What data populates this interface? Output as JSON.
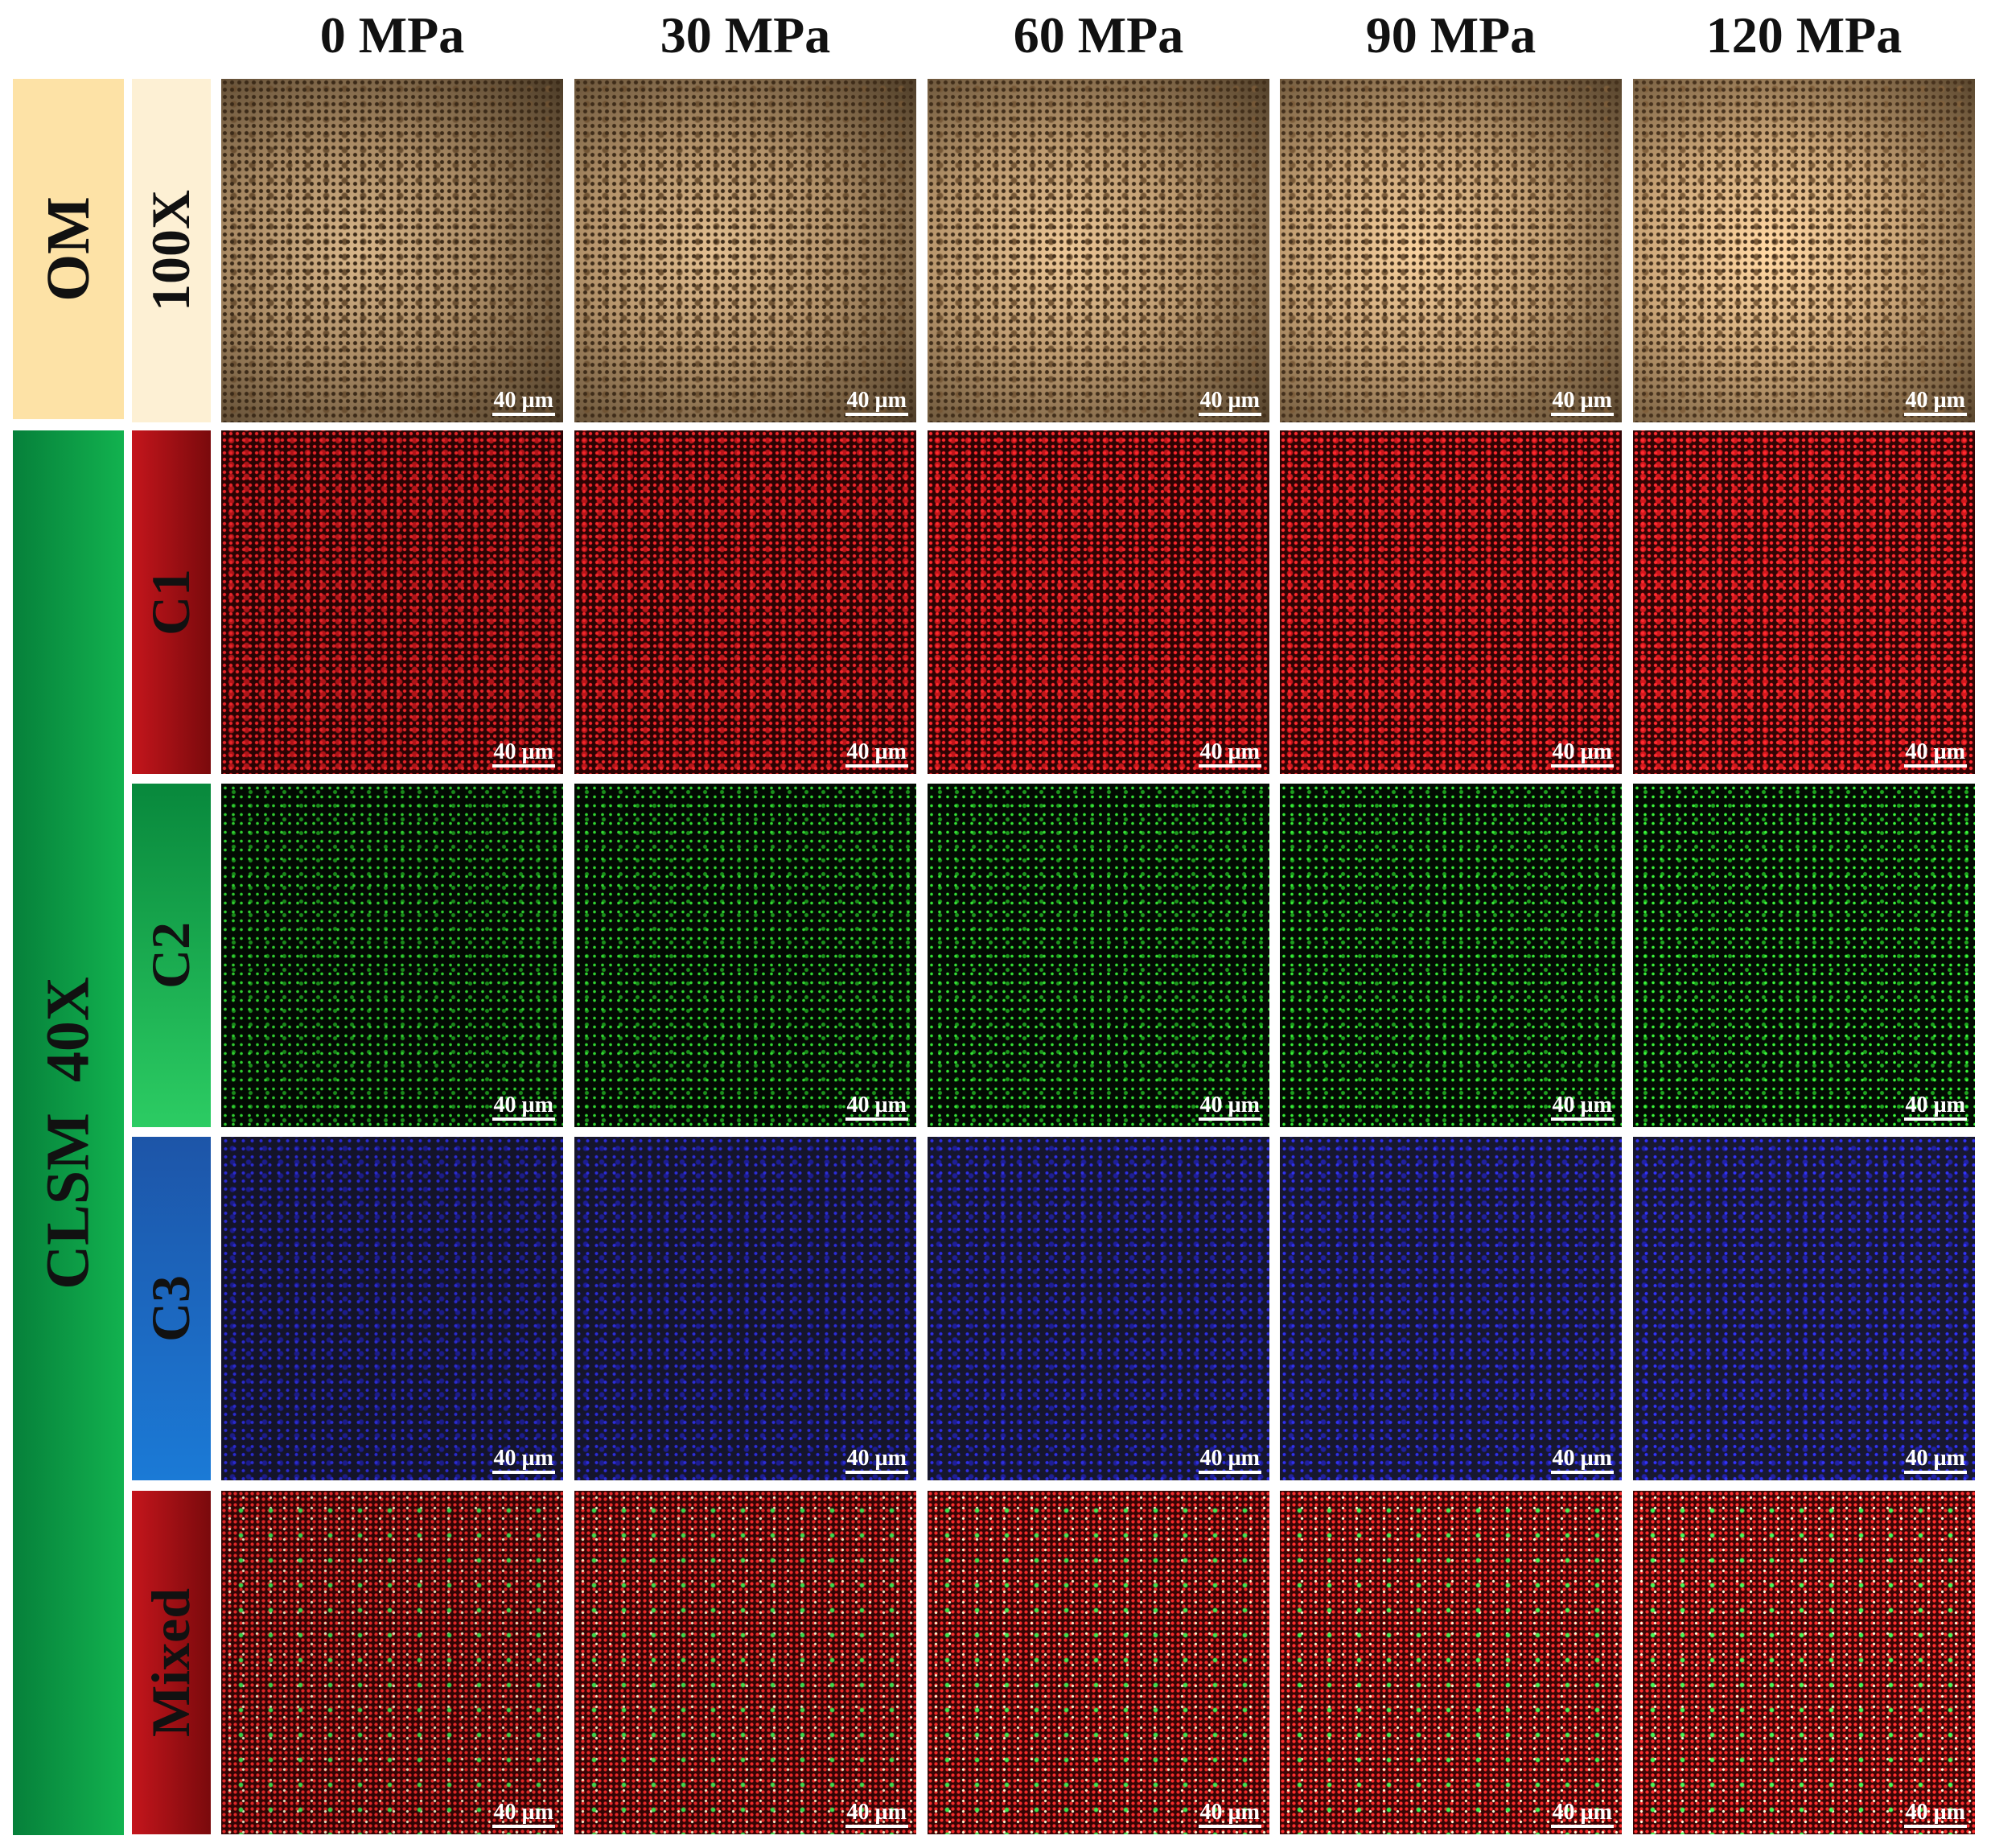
{
  "columns": [
    "0 MPa",
    "30 MPa",
    "60 MPa",
    "90 MPa",
    "120 MPa"
  ],
  "sections": [
    {
      "label": "OM",
      "rows": [
        {
          "label": "100X"
        }
      ]
    },
    {
      "label": "CLSM  40X",
      "rows": [
        {
          "label": "C1"
        },
        {
          "label": "C2"
        },
        {
          "label": "C3"
        },
        {
          "label": "Mixed"
        }
      ]
    }
  ],
  "scale_bar": "40 µm"
}
